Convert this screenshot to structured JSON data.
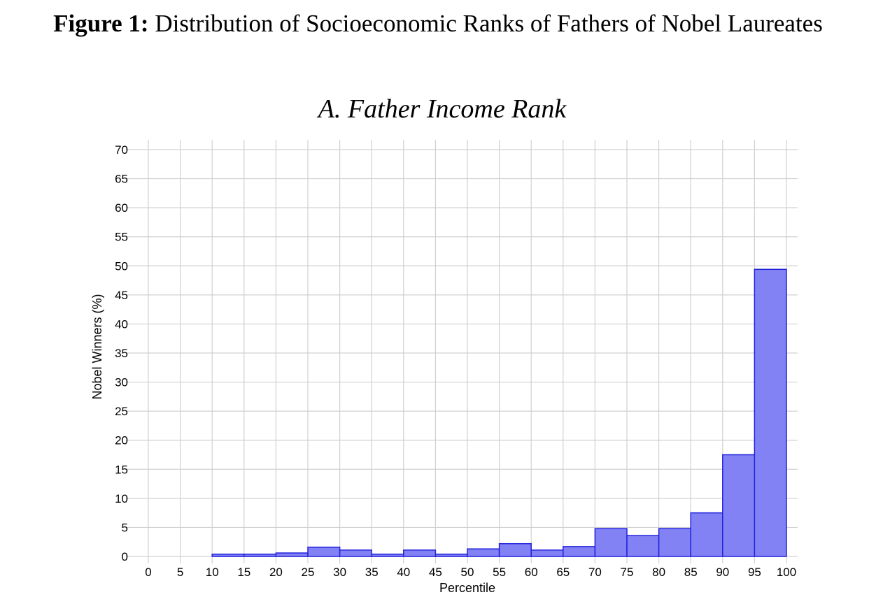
{
  "figure": {
    "label": "Figure 1:",
    "title": "Distribution of Socioeconomic Ranks of Fathers of Nobel Laureates"
  },
  "chart_data": {
    "type": "bar",
    "title": "A. Father Income Rank",
    "xlabel": "Percentile",
    "ylabel": "Nobel Winners (%)",
    "xlim": [
      0,
      100
    ],
    "ylim": [
      0,
      70
    ],
    "xticks": [
      0,
      5,
      10,
      15,
      20,
      25,
      30,
      35,
      40,
      45,
      50,
      55,
      60,
      65,
      70,
      75,
      80,
      85,
      90,
      95,
      100
    ],
    "yticks": [
      0,
      5,
      10,
      15,
      20,
      25,
      30,
      35,
      40,
      45,
      50,
      55,
      60,
      65,
      70
    ],
    "bin_edges": [
      10,
      15,
      20,
      25,
      30,
      35,
      40,
      45,
      50,
      55,
      60,
      65,
      70,
      75,
      80,
      85,
      90,
      95,
      100
    ],
    "values": [
      0.4,
      0.4,
      0.6,
      1.6,
      1.1,
      0.4,
      1.1,
      0.4,
      1.3,
      2.2,
      1.1,
      1.7,
      4.8,
      3.6,
      4.8,
      7.5,
      17.5,
      49.4
    ],
    "grid": true,
    "colors": {
      "bar_fill": "#8282f5",
      "bar_stroke": "#2222dd",
      "grid": "#d0d0d0"
    }
  }
}
